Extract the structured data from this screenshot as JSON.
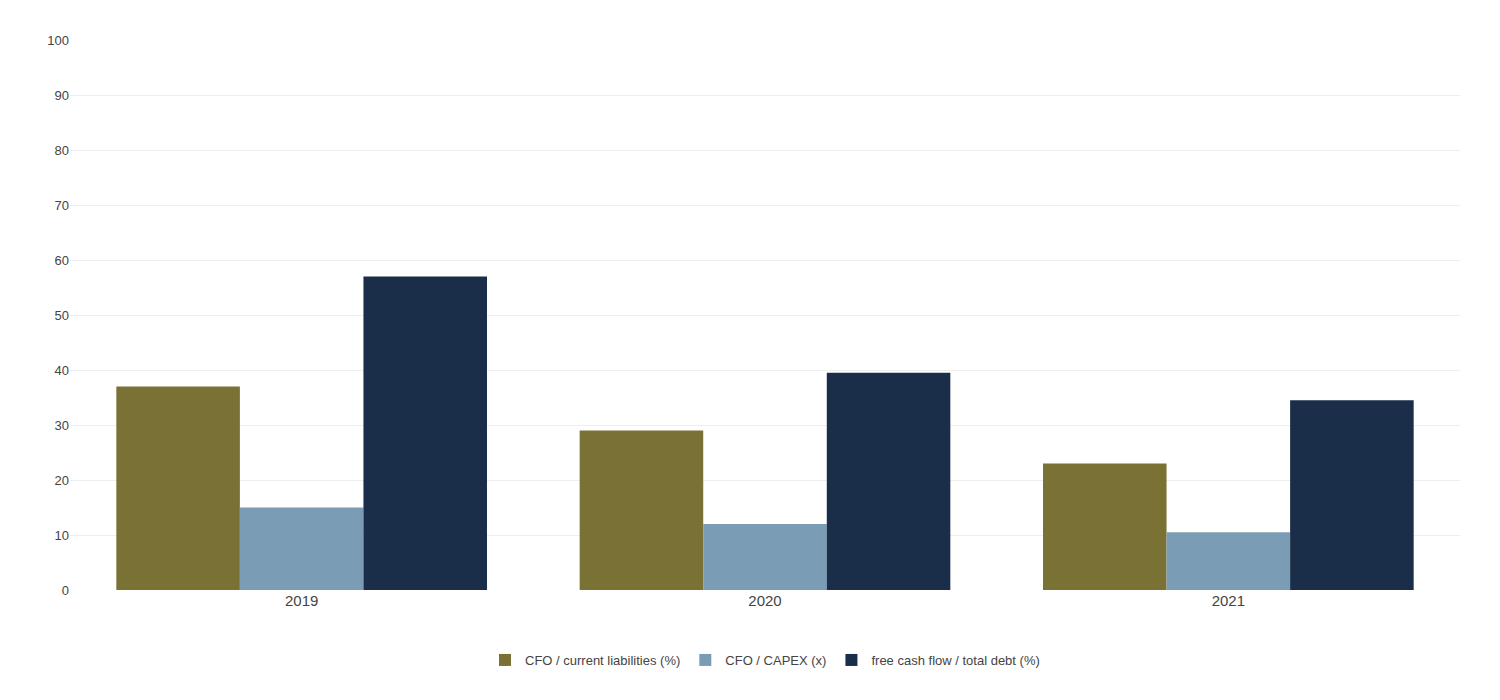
{
  "chart_data": {
    "type": "bar",
    "categories": [
      "2019",
      "2020",
      "2021"
    ],
    "series": [
      {
        "name": "CFO / current liabilities (%)",
        "color": "#7a7235",
        "values": [
          37,
          29,
          23
        ]
      },
      {
        "name": "CFO / CAPEX (x)",
        "color": "#7a9db5",
        "values": [
          15,
          12,
          10.5
        ]
      },
      {
        "name": "free cash flow / total debt (%)",
        "color": "#1a2e4a",
        "values": [
          57,
          39.5,
          34.5
        ]
      }
    ],
    "ylim": [
      0,
      100
    ],
    "yticks": [
      0,
      10,
      20,
      30,
      40,
      50,
      60,
      70,
      80,
      90,
      100
    ],
    "grid": true,
    "legend": "bottom"
  }
}
